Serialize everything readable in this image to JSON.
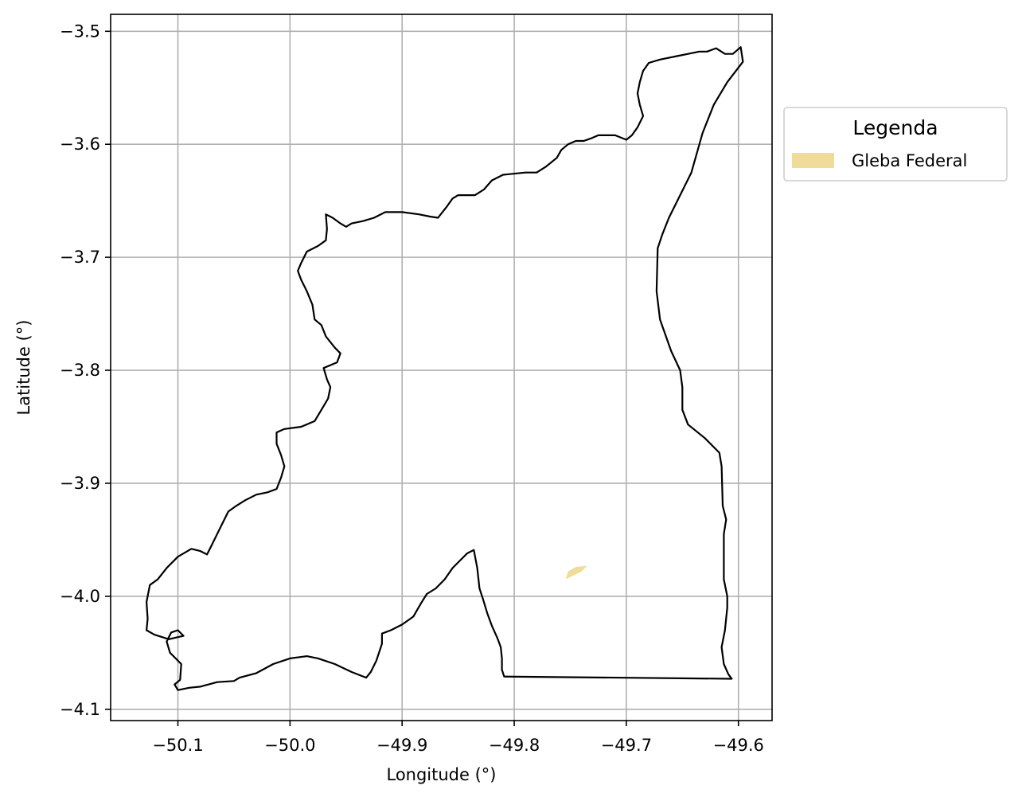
{
  "chart_data": {
    "type": "map",
    "xlabel": "Longitude (°)",
    "ylabel": "Latitude (°)",
    "xlim": [
      -50.16,
      -49.57
    ],
    "ylim": [
      -4.11,
      -3.485
    ],
    "xticks": [
      -50.1,
      -50.0,
      -49.9,
      -49.8,
      -49.7,
      -49.6
    ],
    "xtick_labels": [
      "−50.1",
      "−50.0",
      "−49.9",
      "−49.8",
      "−49.7",
      "−49.6"
    ],
    "yticks": [
      -3.5,
      -3.6,
      -3.7,
      -3.8,
      -3.9,
      -4.0,
      -4.1
    ],
    "ytick_labels": [
      "−3.5",
      "−3.6",
      "−3.7",
      "−3.8",
      "−3.9",
      "−4.0",
      "−4.1"
    ],
    "grid": true,
    "legend": {
      "title": "Legenda",
      "placement": "outside-right-top",
      "entries": [
        {
          "label": "Gleba Federal",
          "color": "#f0dc9a"
        }
      ]
    },
    "layers": [
      {
        "kind": "boundary",
        "stroke": "#000000",
        "fill": "none",
        "coordinates": [
          [
            -49.598,
            -3.514
          ],
          [
            -49.596,
            -3.527
          ],
          [
            -49.61,
            -3.545
          ],
          [
            -49.622,
            -3.565
          ],
          [
            -49.632,
            -3.59
          ],
          [
            -49.642,
            -3.625
          ],
          [
            -49.657,
            -3.655
          ],
          [
            -49.662,
            -3.665
          ],
          [
            -49.668,
            -3.68
          ],
          [
            -49.672,
            -3.692
          ],
          [
            -49.673,
            -3.73
          ],
          [
            -49.67,
            -3.755
          ],
          [
            -49.66,
            -3.783
          ],
          [
            -49.652,
            -3.8
          ],
          [
            -49.65,
            -3.815
          ],
          [
            -49.65,
            -3.835
          ],
          [
            -49.645,
            -3.848
          ],
          [
            -49.63,
            -3.86
          ],
          [
            -49.617,
            -3.873
          ],
          [
            -49.615,
            -3.885
          ],
          [
            -49.614,
            -3.92
          ],
          [
            -49.611,
            -3.932
          ],
          [
            -49.613,
            -3.945
          ],
          [
            -49.613,
            -3.985
          ],
          [
            -49.61,
            -4.0
          ],
          [
            -49.61,
            -4.01
          ],
          [
            -49.612,
            -4.03
          ],
          [
            -49.615,
            -4.045
          ],
          [
            -49.613,
            -4.06
          ],
          [
            -49.609,
            -4.069
          ],
          [
            -49.606,
            -4.073
          ],
          [
            -49.809,
            -4.071
          ],
          [
            -49.811,
            -4.065
          ],
          [
            -49.811,
            -4.055
          ],
          [
            -49.812,
            -4.045
          ],
          [
            -49.815,
            -4.037
          ],
          [
            -49.82,
            -4.026
          ],
          [
            -49.824,
            -4.015
          ],
          [
            -49.828,
            -4.002
          ],
          [
            -49.831,
            -3.993
          ],
          [
            -49.833,
            -3.975
          ],
          [
            -49.836,
            -3.959
          ],
          [
            -49.842,
            -3.962
          ],
          [
            -49.855,
            -3.975
          ],
          [
            -49.862,
            -3.985
          ],
          [
            -49.87,
            -3.993
          ],
          [
            -49.878,
            -3.998
          ],
          [
            -49.883,
            -4.006
          ],
          [
            -49.89,
            -4.018
          ],
          [
            -49.9,
            -4.025
          ],
          [
            -49.91,
            -4.03
          ],
          [
            -49.918,
            -4.033
          ],
          [
            -49.918,
            -4.042
          ],
          [
            -49.923,
            -4.057
          ],
          [
            -49.928,
            -4.067
          ],
          [
            -49.932,
            -4.072
          ],
          [
            -49.945,
            -4.067
          ],
          [
            -49.96,
            -4.06
          ],
          [
            -49.975,
            -4.055
          ],
          [
            -49.985,
            -4.053
          ],
          [
            -50.0,
            -4.055
          ],
          [
            -50.015,
            -4.06
          ],
          [
            -50.03,
            -4.068
          ],
          [
            -50.045,
            -4.072
          ],
          [
            -50.05,
            -4.075
          ],
          [
            -50.065,
            -4.076
          ],
          [
            -50.08,
            -4.08
          ],
          [
            -50.09,
            -4.081
          ],
          [
            -50.1,
            -4.083
          ],
          [
            -50.103,
            -4.078
          ],
          [
            -50.098,
            -4.074
          ],
          [
            -50.097,
            -4.06
          ],
          [
            -50.102,
            -4.055
          ],
          [
            -50.107,
            -4.05
          ],
          [
            -50.11,
            -4.04
          ],
          [
            -50.106,
            -4.032
          ],
          [
            -50.1,
            -4.03
          ],
          [
            -50.095,
            -4.035
          ],
          [
            -50.108,
            -4.038
          ],
          [
            -50.121,
            -4.034
          ],
          [
            -50.128,
            -4.03
          ],
          [
            -50.127,
            -4.02
          ],
          [
            -50.128,
            -4.005
          ],
          [
            -50.125,
            -3.99
          ],
          [
            -50.118,
            -3.985
          ],
          [
            -50.11,
            -3.975
          ],
          [
            -50.1,
            -3.965
          ],
          [
            -50.088,
            -3.958
          ],
          [
            -50.08,
            -3.96
          ],
          [
            -50.074,
            -3.963
          ],
          [
            -50.07,
            -3.955
          ],
          [
            -50.065,
            -3.945
          ],
          [
            -50.06,
            -3.935
          ],
          [
            -50.055,
            -3.925
          ],
          [
            -50.048,
            -3.92
          ],
          [
            -50.04,
            -3.915
          ],
          [
            -50.03,
            -3.91
          ],
          [
            -50.02,
            -3.908
          ],
          [
            -50.012,
            -3.905
          ],
          [
            -50.008,
            -3.895
          ],
          [
            -50.005,
            -3.885
          ],
          [
            -50.008,
            -3.875
          ],
          [
            -50.012,
            -3.865
          ],
          [
            -50.012,
            -3.855
          ],
          [
            -50.005,
            -3.852
          ],
          [
            -49.99,
            -3.85
          ],
          [
            -49.978,
            -3.845
          ],
          [
            -49.972,
            -3.835
          ],
          [
            -49.966,
            -3.825
          ],
          [
            -49.964,
            -3.815
          ],
          [
            -49.967,
            -3.808
          ],
          [
            -49.97,
            -3.798
          ],
          [
            -49.958,
            -3.793
          ],
          [
            -49.955,
            -3.785
          ],
          [
            -49.96,
            -3.78
          ],
          [
            -49.968,
            -3.77
          ],
          [
            -49.972,
            -3.76
          ],
          [
            -49.978,
            -3.755
          ],
          [
            -49.98,
            -3.742
          ],
          [
            -49.985,
            -3.73
          ],
          [
            -49.99,
            -3.72
          ],
          [
            -49.993,
            -3.712
          ],
          [
            -49.99,
            -3.705
          ],
          [
            -49.985,
            -3.695
          ],
          [
            -49.975,
            -3.69
          ],
          [
            -49.968,
            -3.685
          ],
          [
            -49.967,
            -3.675
          ],
          [
            -49.968,
            -3.662
          ],
          [
            -49.962,
            -3.665
          ],
          [
            -49.955,
            -3.67
          ],
          [
            -49.95,
            -3.673
          ],
          [
            -49.945,
            -3.67
          ],
          [
            -49.935,
            -3.668
          ],
          [
            -49.925,
            -3.665
          ],
          [
            -49.915,
            -3.66
          ],
          [
            -49.9,
            -3.66
          ],
          [
            -49.885,
            -3.662
          ],
          [
            -49.875,
            -3.664
          ],
          [
            -49.868,
            -3.665
          ],
          [
            -49.86,
            -3.655
          ],
          [
            -49.855,
            -3.648
          ],
          [
            -49.85,
            -3.645
          ],
          [
            -49.835,
            -3.645
          ],
          [
            -49.827,
            -3.64
          ],
          [
            -49.82,
            -3.632
          ],
          [
            -49.81,
            -3.627
          ],
          [
            -49.79,
            -3.625
          ],
          [
            -49.78,
            -3.625
          ],
          [
            -49.772,
            -3.62
          ],
          [
            -49.762,
            -3.612
          ],
          [
            -49.758,
            -3.605
          ],
          [
            -49.752,
            -3.6
          ],
          [
            -49.745,
            -3.597
          ],
          [
            -49.738,
            -3.597
          ],
          [
            -49.732,
            -3.595
          ],
          [
            -49.725,
            -3.592
          ],
          [
            -49.71,
            -3.592
          ],
          [
            -49.7,
            -3.596
          ],
          [
            -49.695,
            -3.592
          ],
          [
            -49.69,
            -3.585
          ],
          [
            -49.685,
            -3.575
          ],
          [
            -49.688,
            -3.565
          ],
          [
            -49.69,
            -3.555
          ],
          [
            -49.688,
            -3.545
          ],
          [
            -49.685,
            -3.535
          ],
          [
            -49.68,
            -3.528
          ],
          [
            -49.67,
            -3.525
          ],
          [
            -49.655,
            -3.522
          ],
          [
            -49.645,
            -3.52
          ],
          [
            -49.635,
            -3.518
          ],
          [
            -49.628,
            -3.518
          ],
          [
            -49.62,
            -3.515
          ],
          [
            -49.612,
            -3.52
          ],
          [
            -49.605,
            -3.52
          ],
          [
            -49.598,
            -3.514
          ]
        ]
      },
      {
        "kind": "polygon",
        "legend_ref": "Gleba Federal",
        "fill": "#f0dc9a",
        "coordinates": [
          [
            -49.735,
            -3.973
          ],
          [
            -49.745,
            -3.974
          ],
          [
            -49.752,
            -3.978
          ],
          [
            -49.754,
            -3.985
          ],
          [
            -49.748,
            -3.982
          ],
          [
            -49.74,
            -3.978
          ],
          [
            -49.735,
            -3.973
          ]
        ]
      }
    ]
  }
}
